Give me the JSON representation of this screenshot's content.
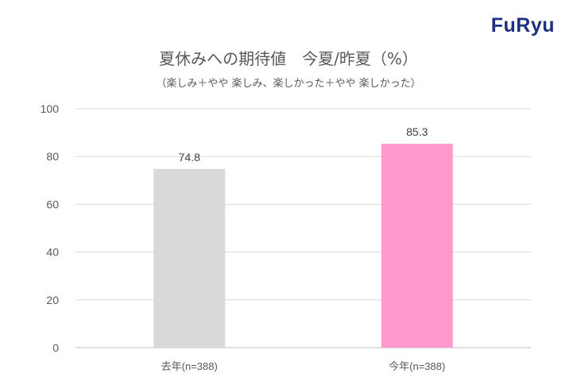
{
  "brand": {
    "logo_text": "FuRyu",
    "logo_color": "#1f2f82"
  },
  "chart_data": {
    "type": "bar",
    "title": "夏休みへの期待値　今夏/昨夏（%）",
    "subtitle": "（楽しみ＋やや 楽しみ、楽しかった＋やや 楽しかった）",
    "categories": [
      "去年(n=388)",
      "今年(n=388)"
    ],
    "values": [
      74.8,
      85.3
    ],
    "value_labels": [
      "74.8",
      "85.3"
    ],
    "colors": [
      "#d9d9d9",
      "#ff99cc"
    ],
    "ylim": [
      0,
      100
    ],
    "yticks": [
      0,
      20,
      40,
      60,
      80,
      100
    ],
    "grid": true,
    "xlabel": "",
    "ylabel": ""
  }
}
